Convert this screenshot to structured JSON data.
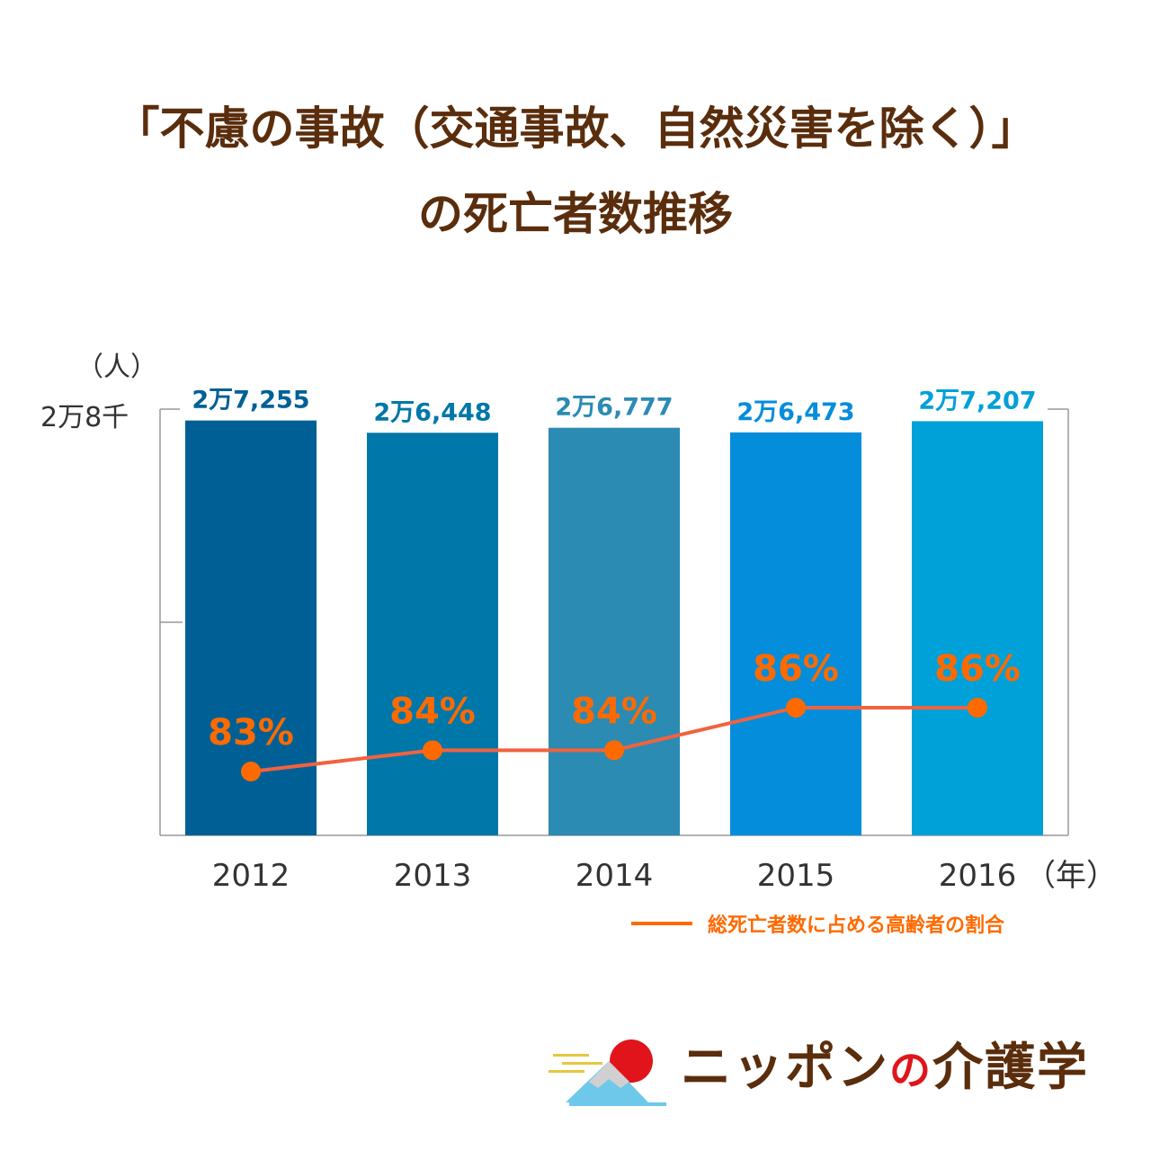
{
  "title": {
    "line1": "「不慮の事故（交通事故、自然災害を除く）」",
    "line2": "の死亡者数推移"
  },
  "chart_data": {
    "type": "bar",
    "categories": [
      "2012",
      "2013",
      "2014",
      "2015",
      "2016"
    ],
    "values": [
      27255,
      26448,
      26777,
      26473,
      27207
    ],
    "value_labels": [
      "2万7,255",
      "2万6,448",
      "2万6,777",
      "2万6,473",
      "2万7,207"
    ],
    "bar_colors": [
      "#006096",
      "#0077a9",
      "#2b8bb3",
      "#048ddb",
      "#00a0d8"
    ],
    "y_unit_label": "（人）",
    "y_top_label": "2万8千",
    "x_unit_label": "（年）",
    "series": [
      {
        "name": "総死亡者数に占める高齢者の割合",
        "type": "line",
        "values": [
          83,
          84,
          84,
          86,
          86
        ],
        "labels": [
          "83%",
          "84%",
          "84%",
          "86%",
          "86%"
        ],
        "color": "#f2623f"
      }
    ],
    "legend": {
      "position": "bottom-right",
      "text": "総死亡者数に占める高齢者の割合"
    },
    "grid": false
  },
  "logo": {
    "text_part1": "ニッポン",
    "text_part2": "の",
    "text_part3": "介護学"
  }
}
